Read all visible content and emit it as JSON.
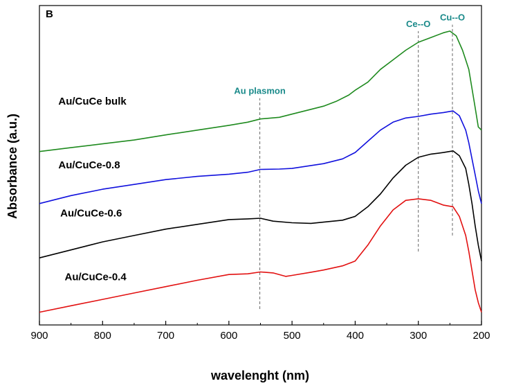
{
  "chart_data": {
    "type": "line",
    "panel_label": "B",
    "xlabel": "wavelenght (nm)",
    "ylabel": "Absorbance (a.u.)",
    "xlim": [
      900,
      200
    ],
    "x_reversed": true,
    "ylim": [
      0,
      1
    ],
    "x_ticks": [
      "900",
      "800",
      "700",
      "600",
      "500",
      "400",
      "300",
      "200"
    ],
    "y_ticks_labeled": false,
    "grid": false,
    "accent_color": "#1a8a8a",
    "annotations": [
      {
        "text": "Au plasmon",
        "x": 551,
        "line_y": [
          0.05,
          0.71
        ]
      },
      {
        "text": "Ce--O",
        "x": 300,
        "line_y": [
          0.23,
          0.92
        ]
      },
      {
        "text": "Cu--O",
        "x": 246,
        "line_y": [
          0.28,
          0.94
        ]
      }
    ],
    "series": [
      {
        "name": "Au/CuCe bulk",
        "color": "#1e8a1e",
        "label_x": 870,
        "label_y": 0.69,
        "x": [
          900,
          850,
          800,
          750,
          700,
          650,
          600,
          570,
          550,
          520,
          500,
          470,
          450,
          430,
          410,
          400,
          380,
          360,
          340,
          320,
          300,
          280,
          260,
          250,
          240,
          230,
          225,
          220,
          215,
          210,
          205,
          200
        ],
        "y": [
          0.543,
          0.555,
          0.567,
          0.579,
          0.595,
          0.61,
          0.625,
          0.635,
          0.645,
          0.65,
          0.66,
          0.675,
          0.685,
          0.7,
          0.72,
          0.735,
          0.76,
          0.8,
          0.83,
          0.86,
          0.885,
          0.9,
          0.915,
          0.92,
          0.905,
          0.86,
          0.83,
          0.8,
          0.74,
          0.68,
          0.62,
          0.61
        ]
      },
      {
        "name": "Au/CuCe-0.8",
        "color": "#1010dd",
        "label_x": 870,
        "label_y": 0.49,
        "x": [
          900,
          850,
          800,
          750,
          700,
          650,
          600,
          570,
          550,
          520,
          500,
          450,
          420,
          400,
          380,
          360,
          340,
          320,
          300,
          280,
          260,
          245,
          235,
          225,
          220,
          215,
          210,
          205,
          200
        ],
        "y": [
          0.38,
          0.405,
          0.425,
          0.44,
          0.455,
          0.465,
          0.472,
          0.478,
          0.487,
          0.488,
          0.49,
          0.505,
          0.52,
          0.54,
          0.575,
          0.61,
          0.635,
          0.648,
          0.653,
          0.66,
          0.665,
          0.67,
          0.655,
          0.61,
          0.57,
          0.52,
          0.47,
          0.42,
          0.38
        ]
      },
      {
        "name": "Au/CuCe-0.6",
        "color": "#000000",
        "label_x": 867,
        "label_y": 0.34,
        "x": [
          900,
          850,
          800,
          750,
          700,
          650,
          600,
          570,
          550,
          530,
          500,
          470,
          450,
          420,
          400,
          380,
          360,
          340,
          320,
          300,
          280,
          260,
          245,
          235,
          225,
          220,
          215,
          210,
          205,
          200
        ],
        "y": [
          0.21,
          0.235,
          0.26,
          0.28,
          0.3,
          0.315,
          0.33,
          0.332,
          0.334,
          0.325,
          0.32,
          0.318,
          0.322,
          0.328,
          0.34,
          0.37,
          0.41,
          0.46,
          0.5,
          0.525,
          0.535,
          0.54,
          0.545,
          0.53,
          0.49,
          0.44,
          0.38,
          0.31,
          0.25,
          0.2
        ]
      },
      {
        "name": "Au/CuCe-0.4",
        "color": "#e21010",
        "label_x": 860,
        "label_y": 0.14,
        "x": [
          900,
          850,
          800,
          750,
          700,
          650,
          600,
          570,
          550,
          530,
          510,
          500,
          470,
          450,
          420,
          400,
          380,
          360,
          340,
          320,
          300,
          280,
          260,
          245,
          235,
          225,
          220,
          215,
          210,
          205,
          200
        ],
        "y": [
          0.04,
          0.06,
          0.08,
          0.1,
          0.12,
          0.14,
          0.158,
          0.16,
          0.166,
          0.163,
          0.152,
          0.155,
          0.165,
          0.172,
          0.185,
          0.2,
          0.25,
          0.31,
          0.36,
          0.39,
          0.395,
          0.39,
          0.375,
          0.37,
          0.34,
          0.28,
          0.23,
          0.17,
          0.11,
          0.07,
          0.04
        ]
      }
    ]
  }
}
